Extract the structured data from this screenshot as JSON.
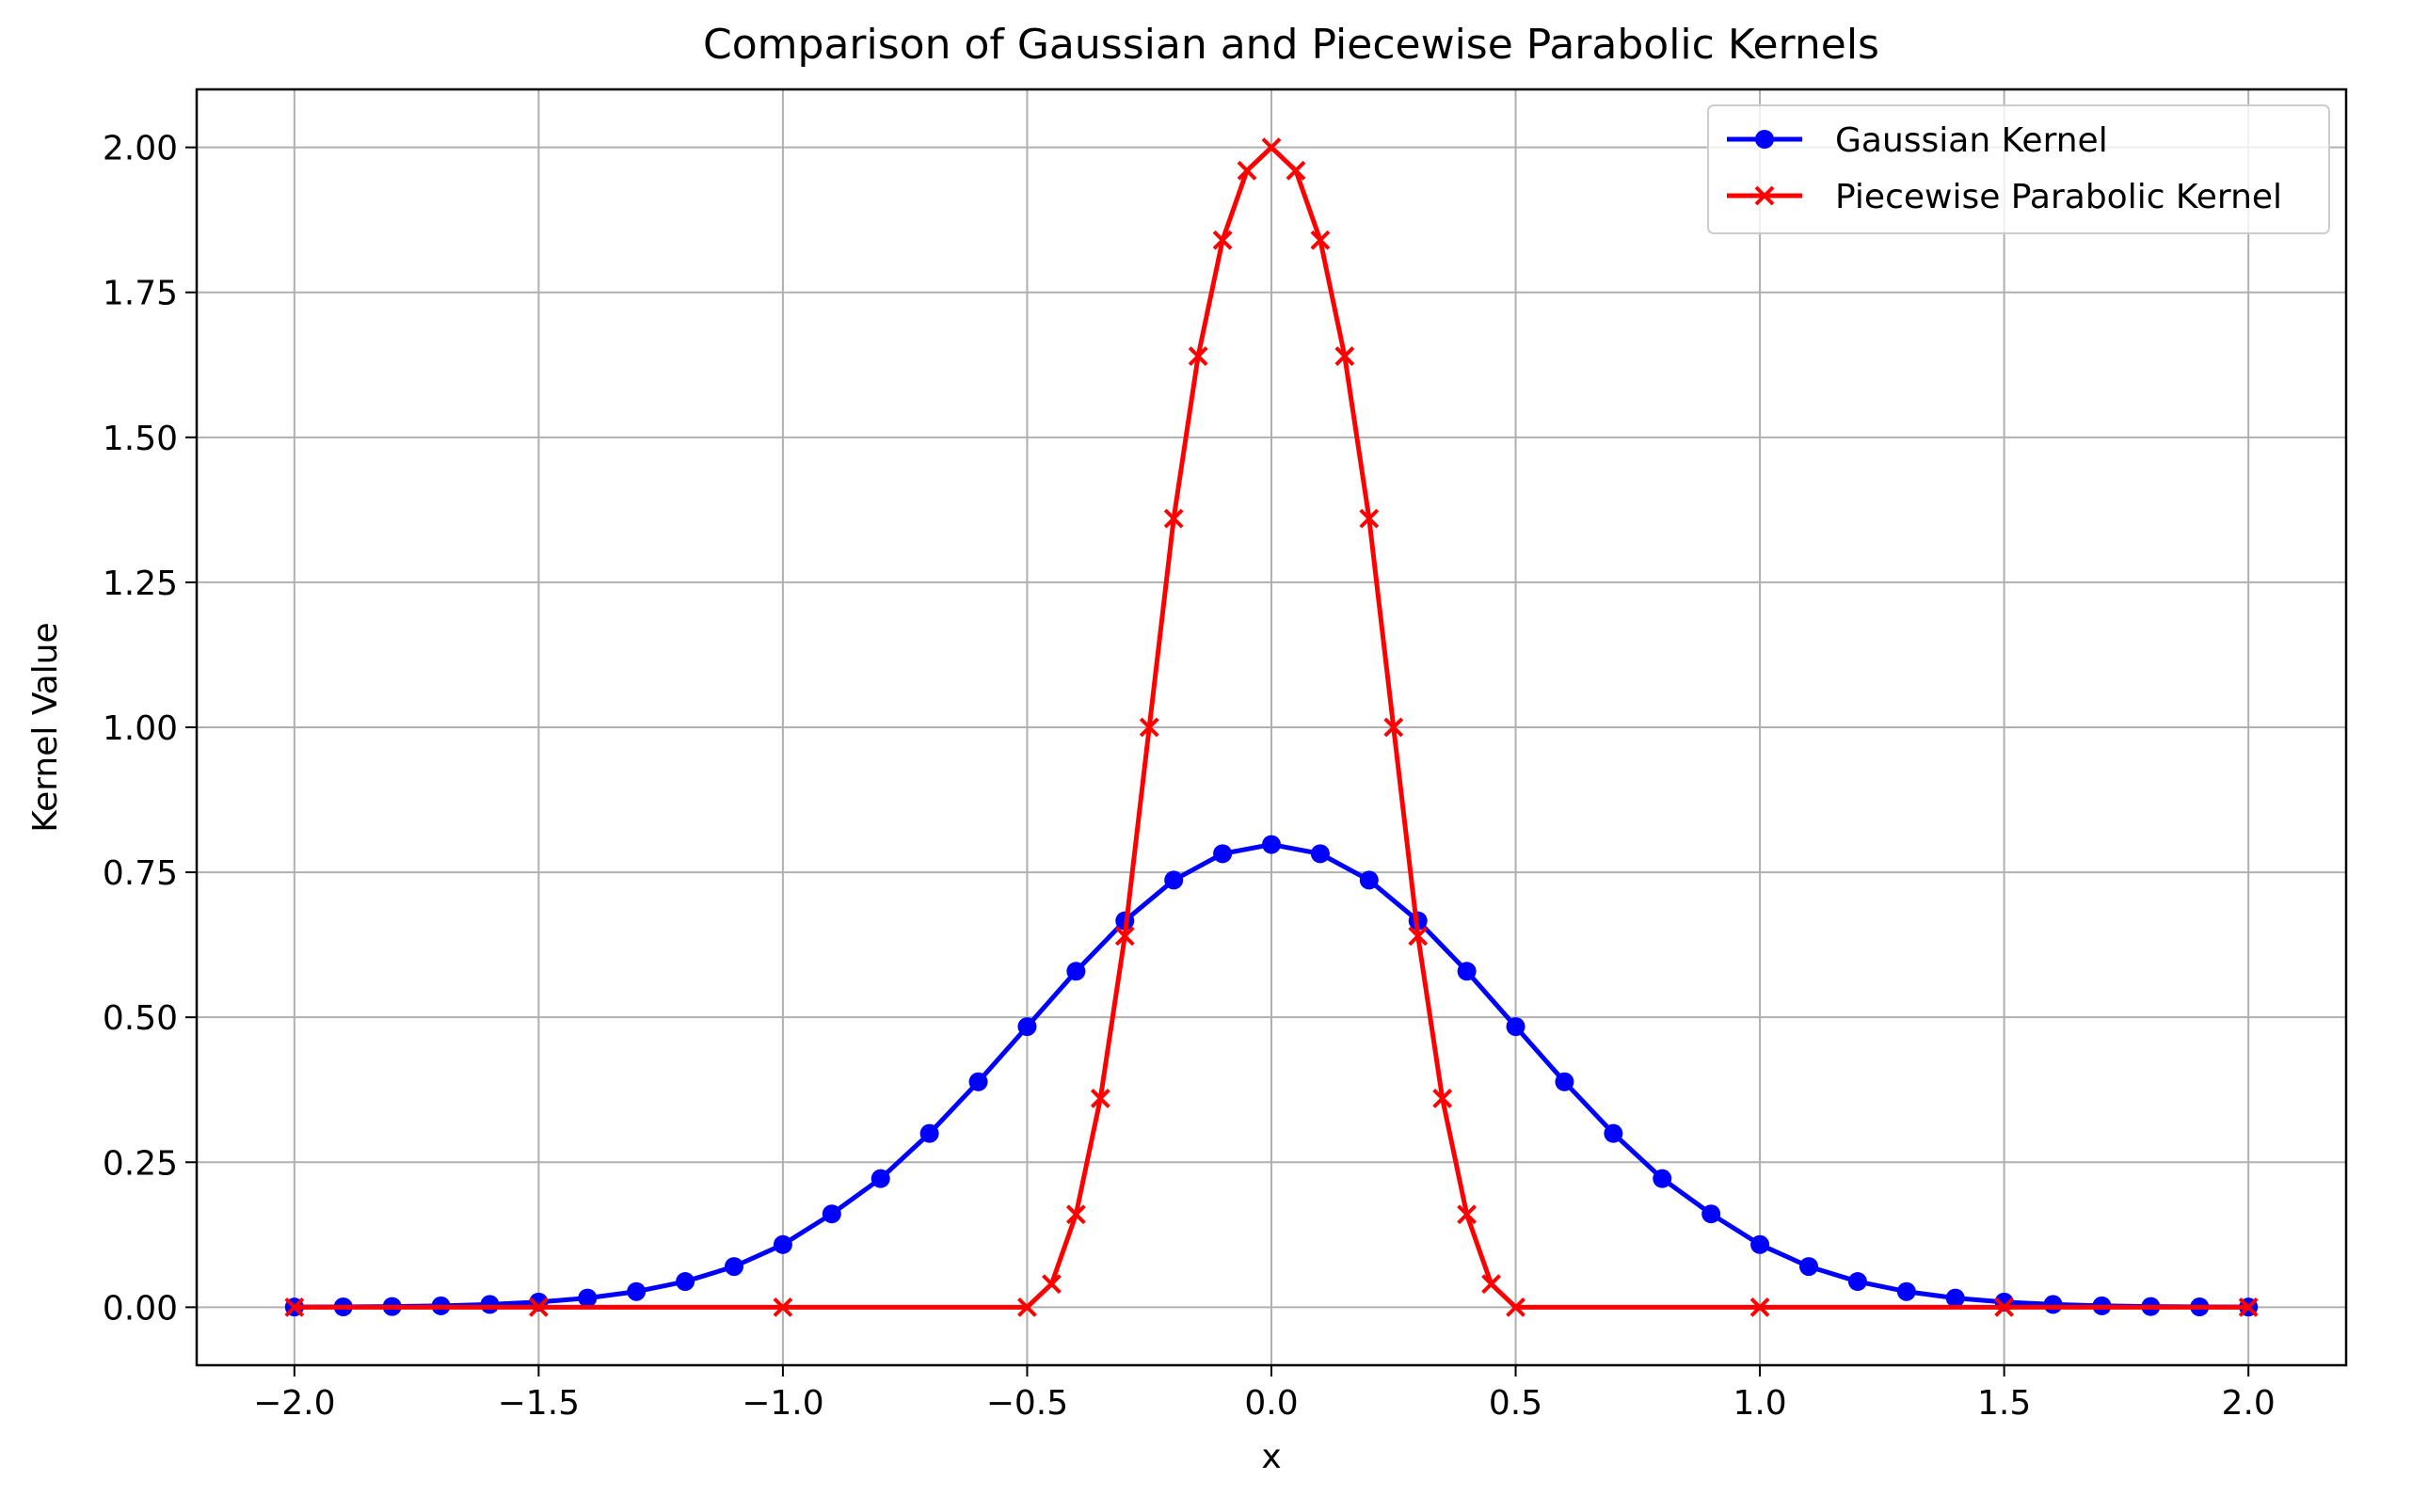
{
  "chart_data": {
    "type": "line",
    "title": "Comparison of Gaussian and Piecewise Parabolic Kernels",
    "xlabel": "x",
    "ylabel": "Kernel Value",
    "xlim": [
      -2.2,
      2.2
    ],
    "ylim": [
      -0.1,
      2.1
    ],
    "xticks": [
      -2.0,
      -1.5,
      -1.0,
      -0.5,
      0.0,
      0.5,
      1.0,
      1.5,
      2.0
    ],
    "xtick_labels": [
      "−2.0",
      "−1.5",
      "−1.0",
      "−0.5",
      "0.0",
      "0.5",
      "1.0",
      "1.5",
      "2.0"
    ],
    "yticks": [
      0.0,
      0.25,
      0.5,
      0.75,
      1.0,
      1.25,
      1.5,
      1.75,
      2.0
    ],
    "ytick_labels": [
      "0.00",
      "0.25",
      "0.50",
      "0.75",
      "1.00",
      "1.25",
      "1.50",
      "1.75",
      "2.00"
    ],
    "grid": true,
    "legend_position": "top-right",
    "series": [
      {
        "name": "Gaussian Kernel",
        "color": "#0000ff",
        "marker": "circle",
        "x": [
          -2.0,
          -1.9,
          -1.8,
          -1.7,
          -1.6,
          -1.5,
          -1.4,
          -1.3,
          -1.2,
          -1.1,
          -1.0,
          -0.9,
          -0.8,
          -0.7,
          -0.6,
          -0.5,
          -0.4,
          -0.3,
          -0.2,
          -0.1,
          0.0,
          0.1,
          0.2,
          0.3,
          0.4,
          0.5,
          0.6,
          0.7,
          0.8,
          0.9,
          1.0,
          1.1,
          1.2,
          1.3,
          1.4,
          1.5,
          1.6,
          1.7,
          1.8,
          1.9,
          2.0
        ],
        "y": [
          0.0003,
          0.0006,
          0.0012,
          0.0024,
          0.0048,
          0.0089,
          0.0158,
          0.027,
          0.0443,
          0.0702,
          0.108,
          0.1609,
          0.2218,
          0.2997,
          0.3887,
          0.4839,
          0.5793,
          0.6663,
          0.7365,
          0.782,
          0.7979,
          0.782,
          0.7365,
          0.6663,
          0.5793,
          0.4839,
          0.3887,
          0.2997,
          0.2218,
          0.1609,
          0.108,
          0.0702,
          0.0443,
          0.027,
          0.0158,
          0.0089,
          0.0048,
          0.0024,
          0.0012,
          0.0006,
          0.0003
        ]
      },
      {
        "name": "Piecewise Parabolic Kernel",
        "color": "#ff0000",
        "marker": "x",
        "x": [
          -2.0,
          -1.5,
          -1.0,
          -0.5,
          -0.45,
          -0.4,
          -0.35,
          -0.3,
          -0.25,
          -0.2,
          -0.15,
          -0.1,
          -0.05,
          0.0,
          0.05,
          0.1,
          0.15,
          0.2,
          0.25,
          0.3,
          0.35,
          0.4,
          0.45,
          0.5,
          1.0,
          1.5,
          2.0
        ],
        "y": [
          0.0,
          0.0,
          0.0,
          0.0,
          0.04,
          0.16,
          0.36,
          0.64,
          1.0,
          1.36,
          1.64,
          1.84,
          1.96,
          2.0,
          1.96,
          1.84,
          1.64,
          1.36,
          1.0,
          0.64,
          0.36,
          0.16,
          0.04,
          0.0,
          0.0,
          0.0,
          0.0
        ]
      }
    ]
  }
}
